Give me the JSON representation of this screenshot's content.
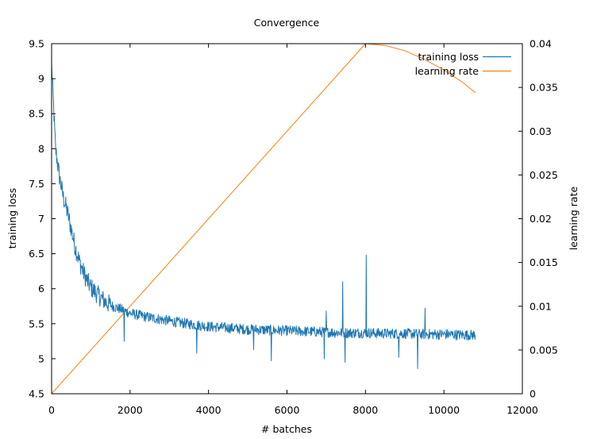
{
  "chart_data": {
    "type": "line",
    "title": "Convergence",
    "xlabel": "# batches",
    "ylabel": "training loss",
    "y2label": "learning rate",
    "xlim": [
      0,
      12000
    ],
    "ylim": [
      4.5,
      9.5
    ],
    "y2lim": [
      0,
      0.04
    ],
    "grid": false,
    "legend_position": "top-right",
    "x_ticks": [
      0,
      2000,
      4000,
      6000,
      8000,
      10000,
      12000
    ],
    "y_ticks": [
      4.5,
      5,
      5.5,
      6,
      6.5,
      7,
      7.5,
      8,
      8.5,
      9,
      9.5
    ],
    "y2_ticks": [
      0,
      0.005,
      0.01,
      0.015,
      0.02,
      0.025,
      0.03,
      0.035,
      0.04
    ],
    "series": [
      {
        "name": "training loss",
        "axis": "left",
        "color": "#1f77b4",
        "x": [
          0,
          50,
          100,
          200,
          300,
          400,
          500,
          600,
          700,
          800,
          900,
          1000,
          1200,
          1400,
          1600,
          1800,
          2000,
          2400,
          2800,
          3200,
          3600,
          4000,
          4500,
          5000,
          5500,
          6000,
          6500,
          7000,
          7500,
          8000,
          8500,
          9000,
          9500,
          10000,
          10500,
          10800
        ],
        "values": [
          9.2,
          8.6,
          8.0,
          7.6,
          7.3,
          7.1,
          6.85,
          6.6,
          6.4,
          6.25,
          6.12,
          6.02,
          5.9,
          5.8,
          5.74,
          5.7,
          5.65,
          5.6,
          5.56,
          5.52,
          5.49,
          5.46,
          5.44,
          5.42,
          5.41,
          5.4,
          5.39,
          5.38,
          5.37,
          5.37,
          5.36,
          5.36,
          5.35,
          5.35,
          5.34,
          5.34
        ],
        "spikes": [
          {
            "x": 1850,
            "y": 5.25
          },
          {
            "x": 3700,
            "y": 5.08
          },
          {
            "x": 5150,
            "y": 5.13
          },
          {
            "x": 5600,
            "y": 4.97
          },
          {
            "x": 6950,
            "y": 5.0
          },
          {
            "x": 7000,
            "y": 5.68
          },
          {
            "x": 7420,
            "y": 6.1
          },
          {
            "x": 7480,
            "y": 4.95
          },
          {
            "x": 8020,
            "y": 6.48
          },
          {
            "x": 8850,
            "y": 5.02
          },
          {
            "x": 9330,
            "y": 4.86
          },
          {
            "x": 9520,
            "y": 5.72
          }
        ]
      },
      {
        "name": "learning rate",
        "axis": "right",
        "color": "#ff7f0e",
        "x": [
          0,
          8000,
          8500,
          9000,
          9500,
          10000,
          10500,
          10800
        ],
        "values": [
          0,
          0.04,
          0.0398,
          0.0392,
          0.0382,
          0.037,
          0.0355,
          0.0344
        ]
      }
    ]
  }
}
